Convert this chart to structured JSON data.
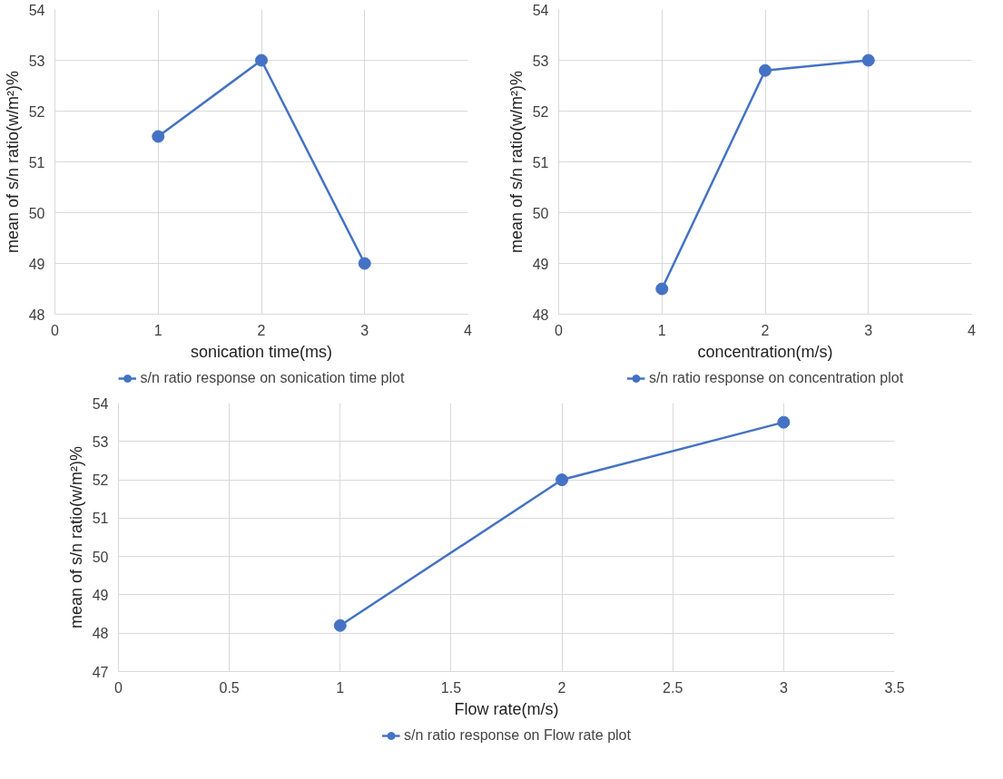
{
  "chart_data": [
    {
      "type": "line",
      "xlabel": "sonication time(ms)",
      "ylabel": "mean of s/n ratio(w/m²)%",
      "x": [
        1,
        2,
        3
      ],
      "series": [
        {
          "name": "s/n ratio response on sonication time plot",
          "color": "#4472c4",
          "values": [
            51.5,
            53,
            49
          ]
        }
      ],
      "xlim": [
        0,
        4
      ],
      "xticks": [
        0,
        1,
        2,
        3,
        4
      ],
      "ylim": [
        48,
        54
      ],
      "yticks": [
        48,
        49,
        50,
        51,
        52,
        53,
        54
      ],
      "grid": true,
      "legend": "bottom",
      "marker": "circle",
      "line_style": "solid"
    },
    {
      "type": "line",
      "xlabel": "concentration(m/s)",
      "ylabel": "mean of s/n ratio(w/m²)%",
      "x": [
        1,
        2,
        3
      ],
      "series": [
        {
          "name": "s/n ratio response on concentration plot",
          "color": "#4472c4",
          "values": [
            48.5,
            52.8,
            53
          ]
        }
      ],
      "xlim": [
        0,
        4
      ],
      "xticks": [
        0,
        1,
        2,
        3,
        4
      ],
      "ylim": [
        48,
        54
      ],
      "yticks": [
        48,
        49,
        50,
        51,
        52,
        53,
        54
      ],
      "grid": true,
      "legend": "bottom",
      "marker": "circle",
      "line_style": "solid"
    },
    {
      "type": "line",
      "xlabel": "Flow rate(m/s)",
      "ylabel": "mean of s/n ratio(w/m²)%",
      "x": [
        1,
        2,
        3
      ],
      "series": [
        {
          "name": "s/n ratio response on Flow rate plot",
          "color": "#4472c4",
          "values": [
            48.2,
            52,
            53.5
          ]
        }
      ],
      "xlim": [
        0,
        3.5
      ],
      "xticks": [
        0,
        0.5,
        1,
        1.5,
        2,
        2.5,
        3,
        3.5
      ],
      "ylim": [
        47,
        54
      ],
      "yticks": [
        47,
        48,
        49,
        50,
        51,
        52,
        53,
        54
      ],
      "grid": true,
      "legend": "bottom",
      "marker": "circle",
      "line_style": "solid"
    }
  ]
}
